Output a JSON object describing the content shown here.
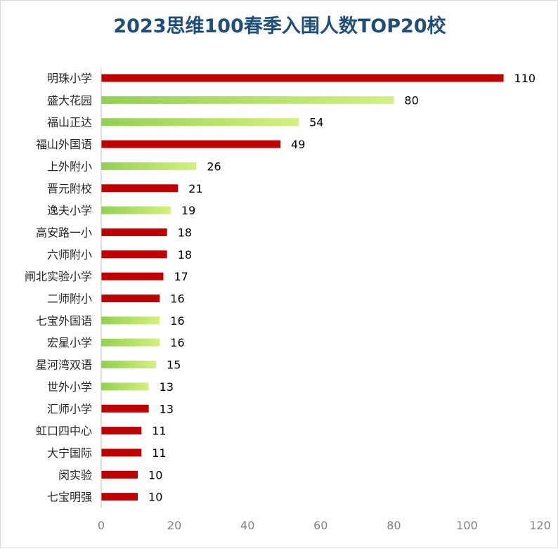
{
  "chart_data": {
    "type": "bar",
    "orientation": "horizontal",
    "title": "2023思维100春季入围人数TOP20校",
    "xlabel": "",
    "ylabel": "",
    "xlim": [
      0,
      120
    ],
    "x_ticks": [
      0,
      20,
      40,
      60,
      80,
      100,
      120
    ],
    "grid": false,
    "categories": [
      "明珠小学",
      "盛大花园",
      "福山正达",
      "福山外国语",
      "上外附小",
      "晋元附校",
      "逸夫小学",
      "高安路一小",
      "六师附小",
      "闸北实验小学",
      "二师附小",
      "七宝外国语",
      "宏星小学",
      "星河湾双语",
      "世外小学",
      "汇师小学",
      "虹口四中心",
      "大宁国际",
      "闵实验",
      "七宝明强"
    ],
    "values": [
      110,
      80,
      54,
      49,
      26,
      21,
      19,
      18,
      18,
      17,
      16,
      16,
      16,
      15,
      13,
      13,
      11,
      11,
      10,
      10
    ],
    "bar_styles": [
      "red",
      "green",
      "green",
      "red",
      "green",
      "red",
      "green",
      "red",
      "red",
      "red",
      "red",
      "green",
      "green",
      "green",
      "green",
      "red",
      "red",
      "red",
      "red",
      "red"
    ],
    "colors": {
      "red": "#c00000",
      "green_start": "#92d050",
      "green_end": "#d4f07e",
      "title": "#1f4e79",
      "axis": "#bfbfbf",
      "tick_text": "#7f7f7f"
    }
  }
}
